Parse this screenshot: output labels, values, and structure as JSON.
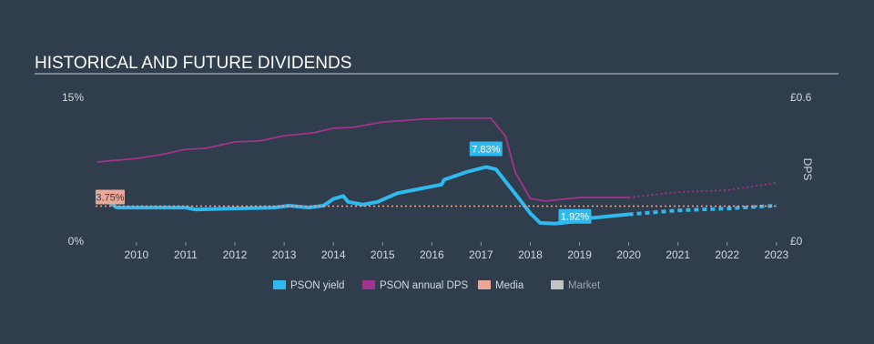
{
  "chart_data": {
    "type": "line",
    "title": "HISTORICAL AND FUTURE DIVIDENDS",
    "y2_label": "DPS",
    "xlim": [
      2009.17,
      2023.04
    ],
    "xticks": [
      2010,
      2011,
      2012,
      2013,
      2014,
      2015,
      2016,
      2017,
      2018,
      2019,
      2020,
      2021,
      2022,
      2023
    ],
    "ylim": [
      0,
      15
    ],
    "yticks": [
      {
        "value": 0,
        "label": "0%"
      },
      {
        "value": 15,
        "label": "15%"
      }
    ],
    "y2lim": [
      0,
      0.6
    ],
    "y2ticks": [
      {
        "value": 0,
        "label": "£0"
      },
      {
        "value": 0.6,
        "label": "£0.6"
      }
    ],
    "forecast_start": 2020,
    "series": [
      {
        "name": "PSON yield",
        "color": "#2fb9ee",
        "x": [
          2009.2,
          2009.6,
          2010,
          2011,
          2011.2,
          2012,
          2012.8,
          2013.1,
          2013.5,
          2013.8,
          2014.0,
          2014.2,
          2014.3,
          2014.6,
          2014.9,
          2015.3,
          2015.8,
          2016.2,
          2016.25,
          2016.7,
          2017.1,
          2017.3,
          2017.7,
          2018.0,
          2018.2,
          2018.5,
          2019.0,
          2019.2,
          2020.0,
          2021.0,
          2022.0,
          2023.0
        ],
        "values": [
          5.0,
          3.6,
          3.6,
          3.6,
          3.4,
          3.5,
          3.6,
          3.8,
          3.6,
          3.8,
          4.5,
          4.8,
          4.2,
          3.9,
          4.2,
          5.1,
          5.6,
          6.0,
          6.5,
          7.3,
          7.83,
          7.6,
          5.0,
          3.0,
          2.0,
          1.92,
          2.2,
          2.5,
          2.9,
          3.3,
          3.5,
          3.8
        ],
        "value_labels": [
          null,
          null,
          null,
          null,
          null,
          null,
          null,
          null,
          null,
          null,
          null,
          null,
          null,
          null,
          null,
          null,
          null,
          null,
          null,
          null,
          "7.83%",
          null,
          null,
          null,
          null,
          "1.92%",
          null,
          null,
          null,
          null,
          null,
          null
        ]
      },
      {
        "name": "PSON annual DPS",
        "color": "#a3338f",
        "axis": "y2",
        "x": [
          2009.2,
          2010,
          2010.5,
          2011,
          2011.4,
          2012,
          2012.5,
          2013,
          2013.6,
          2014,
          2014.4,
          2015,
          2015.8,
          2016.5,
          2017.2,
          2017.5,
          2017.7,
          2018,
          2018.3,
          2019,
          2020,
          2021,
          2022,
          2023
        ],
        "values": [
          0.334,
          0.349,
          0.365,
          0.387,
          0.391,
          0.418,
          0.422,
          0.444,
          0.456,
          0.475,
          0.479,
          0.501,
          0.513,
          0.517,
          0.517,
          0.44,
          0.289,
          0.182,
          0.171,
          0.186,
          0.186,
          0.209,
          0.217,
          0.247
        ]
      },
      {
        "name": "Media",
        "color": "#eba797",
        "x": [
          2009.17,
          2023.0
        ],
        "values": [
          3.75,
          3.75
        ],
        "value_labels": [
          "3.75%",
          null
        ]
      },
      {
        "name": "Market",
        "color": "#c4c4c4",
        "x": [],
        "values": []
      }
    ]
  }
}
